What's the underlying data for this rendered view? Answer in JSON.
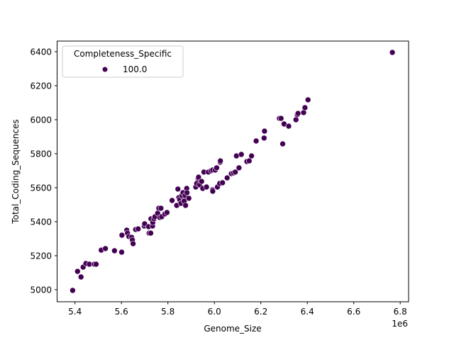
{
  "chart_data": {
    "type": "scatter",
    "title": "",
    "xlabel": "Genome_Size",
    "ylabel": "Total_Coding_Sequences",
    "x_offset_label": "1e6",
    "xlim": [
      5.33,
      6.84
    ],
    "ylim": [
      4935,
      6455
    ],
    "x_ticks": [
      5.4,
      5.6,
      5.8,
      6.0,
      6.2,
      6.4,
      6.6,
      6.8
    ],
    "x_tick_labels": [
      "5.4",
      "5.6",
      "5.8",
      "6.0",
      "6.2",
      "6.4",
      "6.6",
      "6.8"
    ],
    "y_ticks": [
      5000,
      5200,
      5400,
      5600,
      5800,
      6000,
      6200,
      6400
    ],
    "y_tick_labels": [
      "5000",
      "5200",
      "5400",
      "5600",
      "5800",
      "6000",
      "6200",
      "6400"
    ],
    "grid": false,
    "legend": {
      "title": "Completeness_Specific",
      "position": "upper left",
      "entries": [
        {
          "label": "100.0",
          "color": "#440154"
        }
      ]
    },
    "series": [
      {
        "name": "100.0",
        "color": "#440154",
        "points": [
          [
            5.39,
            4996
          ],
          [
            5.411,
            5108
          ],
          [
            5.426,
            5075
          ],
          [
            5.435,
            5133
          ],
          [
            5.447,
            5154
          ],
          [
            5.462,
            5150
          ],
          [
            5.483,
            5150
          ],
          [
            5.491,
            5150
          ],
          [
            5.513,
            5233
          ],
          [
            5.531,
            5242
          ],
          [
            5.57,
            5229
          ],
          [
            5.601,
            5221
          ],
          [
            5.602,
            5321
          ],
          [
            5.623,
            5350
          ],
          [
            5.626,
            5333
          ],
          [
            5.632,
            5313
          ],
          [
            5.644,
            5308
          ],
          [
            5.647,
            5292
          ],
          [
            5.65,
            5271
          ],
          [
            5.661,
            5354
          ],
          [
            5.672,
            5358
          ],
          [
            5.698,
            5375
          ],
          [
            5.7,
            5388
          ],
          [
            5.717,
            5371
          ],
          [
            5.719,
            5333
          ],
          [
            5.726,
            5333
          ],
          [
            5.727,
            5417
          ],
          [
            5.734,
            5375
          ],
          [
            5.735,
            5396
          ],
          [
            5.74,
            5417
          ],
          [
            5.744,
            5429
          ],
          [
            5.756,
            5450
          ],
          [
            5.761,
            5479
          ],
          [
            5.765,
            5425
          ],
          [
            5.77,
            5479
          ],
          [
            5.773,
            5429
          ],
          [
            5.787,
            5446
          ],
          [
            5.796,
            5454
          ],
          [
            5.818,
            5525
          ],
          [
            5.838,
            5496
          ],
          [
            5.843,
            5592
          ],
          [
            5.847,
            5542
          ],
          [
            5.851,
            5529
          ],
          [
            5.856,
            5508
          ],
          [
            5.867,
            5542
          ],
          [
            5.86,
            5554
          ],
          [
            5.865,
            5571
          ],
          [
            5.87,
            5521
          ],
          [
            5.874,
            5554
          ],
          [
            5.876,
            5496
          ],
          [
            5.881,
            5596
          ],
          [
            5.882,
            5571
          ],
          [
            5.89,
            5538
          ],
          [
            5.92,
            5604
          ],
          [
            5.924,
            5625
          ],
          [
            5.93,
            5654
          ],
          [
            5.932,
            5662
          ],
          [
            5.936,
            5617
          ],
          [
            5.945,
            5637
          ],
          [
            5.95,
            5596
          ],
          [
            5.955,
            5692
          ],
          [
            5.966,
            5604
          ],
          [
            5.974,
            5692
          ],
          [
            5.986,
            5700
          ],
          [
            5.993,
            5704
          ],
          [
            5.992,
            5587
          ],
          [
            5.993,
            5579
          ],
          [
            6.004,
            5704
          ],
          [
            6.01,
            5717
          ],
          [
            6.013,
            5604
          ],
          [
            6.023,
            5625
          ],
          [
            6.025,
            5750
          ],
          [
            6.026,
            5758
          ],
          [
            6.035,
            5629
          ],
          [
            6.055,
            5658
          ],
          [
            6.073,
            5683
          ],
          [
            6.082,
            5687
          ],
          [
            6.09,
            5692
          ],
          [
            6.095,
            5787
          ],
          [
            6.106,
            5717
          ],
          [
            6.116,
            5796
          ],
          [
            6.14,
            5754
          ],
          [
            6.15,
            5758
          ],
          [
            6.16,
            5787
          ],
          [
            6.18,
            5875
          ],
          [
            6.214,
            5892
          ],
          [
            6.216,
            5933
          ],
          [
            6.28,
            6008
          ],
          [
            6.287,
            6008
          ],
          [
            6.294,
            5858
          ],
          [
            6.3,
            5975
          ],
          [
            6.32,
            5962
          ],
          [
            6.351,
            6000
          ],
          [
            6.357,
            6029
          ],
          [
            6.36,
            6037
          ],
          [
            6.384,
            6042
          ],
          [
            6.39,
            6071
          ],
          [
            6.403,
            6117
          ],
          [
            6.766,
            6396
          ]
        ]
      }
    ]
  }
}
